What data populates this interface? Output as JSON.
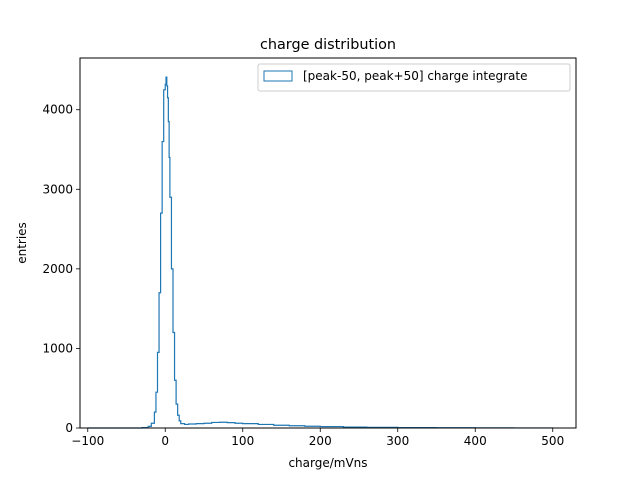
{
  "chart_data": {
    "type": "histogram",
    "title": "charge distribution",
    "xlabel": "charge/mVns",
    "ylabel": "entries",
    "xlim": [
      -110,
      530
    ],
    "ylim": [
      0,
      4650
    ],
    "xticks": [
      -100,
      0,
      100,
      200,
      300,
      400,
      500
    ],
    "yticks": [
      0,
      1000,
      2000,
      3000,
      4000
    ],
    "grid": false,
    "legend_position": "top-right",
    "series": [
      {
        "name": "[peak-50, peak+50] charge integrate",
        "color": "#1f77b4",
        "style": "step",
        "x": [
          -100,
          -60,
          -30,
          -22,
          -18,
          -14,
          -12,
          -10,
          -8,
          -6,
          -4,
          -2,
          0,
          1,
          2,
          3,
          4,
          5,
          6,
          8,
          10,
          12,
          14,
          16,
          18,
          20,
          25,
          30,
          40,
          50,
          60,
          70,
          80,
          90,
          100,
          120,
          140,
          160,
          180,
          200,
          230,
          260,
          300,
          350,
          400,
          450,
          500
        ],
        "y": [
          0,
          0,
          5,
          20,
          60,
          200,
          450,
          950,
          1700,
          2700,
          3600,
          4250,
          4320,
          4410,
          4300,
          4150,
          3850,
          3400,
          2900,
          2000,
          1200,
          600,
          300,
          160,
          90,
          55,
          45,
          50,
          55,
          60,
          70,
          72,
          68,
          60,
          55,
          45,
          35,
          28,
          22,
          18,
          12,
          8,
          5,
          3,
          2,
          1,
          0
        ]
      }
    ]
  }
}
